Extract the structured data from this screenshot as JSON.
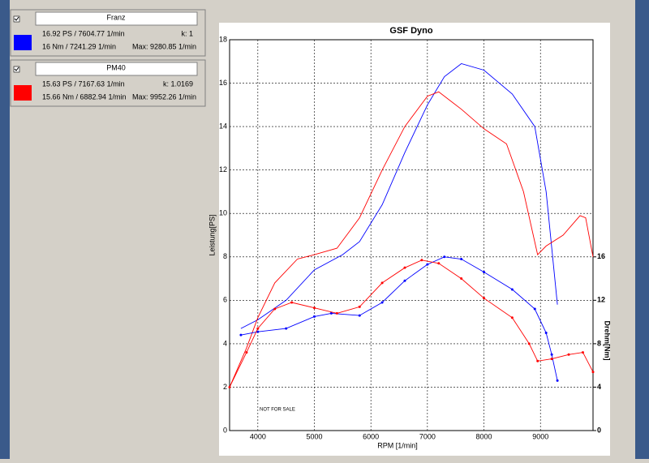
{
  "chart_data": {
    "type": "line",
    "title": "GSF Dyno",
    "xlabel": "RPM [1/min]",
    "ylabel": "Leistung[PS]",
    "y2label": "Drehm[Nm]",
    "annotation": "NOT FOR SALE",
    "xlim": [
      3500,
      9930
    ],
    "xticks": [
      4000,
      5000,
      6000,
      7000,
      8000,
      9000
    ],
    "ylim": [
      0,
      18
    ],
    "yticks": [
      0,
      2,
      4,
      6,
      8,
      10,
      12,
      14,
      16,
      18
    ],
    "y2lim": [
      0,
      36
    ],
    "y2ticks": [
      0,
      4,
      8,
      12,
      16
    ],
    "grid": true,
    "series": [
      {
        "name": "Franz",
        "color": "#0000ff",
        "x": [
          3700,
          4000,
          4500,
          5000,
          5500,
          5800,
          6200,
          6600,
          7000,
          7300,
          7600,
          8000,
          8500,
          8900,
          9100,
          9300
        ],
        "values": [
          4.7,
          5.1,
          6.0,
          7.4,
          8.1,
          8.7,
          10.4,
          12.8,
          15.0,
          16.3,
          16.9,
          16.6,
          15.5,
          14.0,
          11.0,
          5.8
        ]
      },
      {
        "name": "PM40",
        "color": "#ff0000",
        "x": [
          3500,
          3800,
          4000,
          4300,
          4700,
          5000,
          5400,
          5800,
          6200,
          6600,
          7000,
          7200,
          7600,
          8000,
          8400,
          8700,
          8950,
          9100,
          9400,
          9700,
          9800,
          9930
        ],
        "values": [
          2.0,
          3.8,
          5.2,
          6.8,
          7.9,
          8.1,
          8.4,
          9.8,
          12.0,
          14.0,
          15.4,
          15.6,
          14.8,
          13.9,
          13.2,
          11.0,
          8.1,
          8.5,
          9.0,
          9.9,
          9.8,
          8.0
        ]
      },
      {
        "color": "#0000ff",
        "axis": "y2",
        "markers": true,
        "x": [
          3700,
          4000,
          4500,
          5000,
          5300,
          5800,
          6200,
          6600,
          7000,
          7300,
          7600,
          8000,
          8500,
          8900,
          9100,
          9200,
          9300
        ],
        "values": [
          8.8,
          9.1,
          9.4,
          10.5,
          10.8,
          10.6,
          11.8,
          13.8,
          15.3,
          16.0,
          15.8,
          14.6,
          13.0,
          11.2,
          9.0,
          7.0,
          4.6
        ]
      },
      {
        "color": "#ff0000",
        "axis": "y2",
        "markers": true,
        "x": [
          3500,
          3800,
          4000,
          4300,
          4600,
          5000,
          5400,
          5800,
          6200,
          6600,
          6900,
          7200,
          7600,
          8000,
          8500,
          8800,
          8950,
          9200,
          9500,
          9750,
          9930
        ],
        "values": [
          4.0,
          7.2,
          9.4,
          11.2,
          11.8,
          11.3,
          10.8,
          11.4,
          13.6,
          15.0,
          15.7,
          15.4,
          14.0,
          12.2,
          10.4,
          8.0,
          6.4,
          6.6,
          7.0,
          7.2,
          5.4
        ]
      }
    ]
  },
  "panels": [
    {
      "power": "16.92 PS / 7604.77 1/min",
      "k": "k: 1",
      "torque": "16 Nm / 7241.29 1/min",
      "max": "Max: 9280.85 1/min"
    },
    {
      "power": "15.63 PS / 7167.63 1/min",
      "k": "k: 1.0169",
      "torque": "15.66 Nm / 6882.94 1/min",
      "max": "Max: 9952.26 1/min"
    }
  ]
}
